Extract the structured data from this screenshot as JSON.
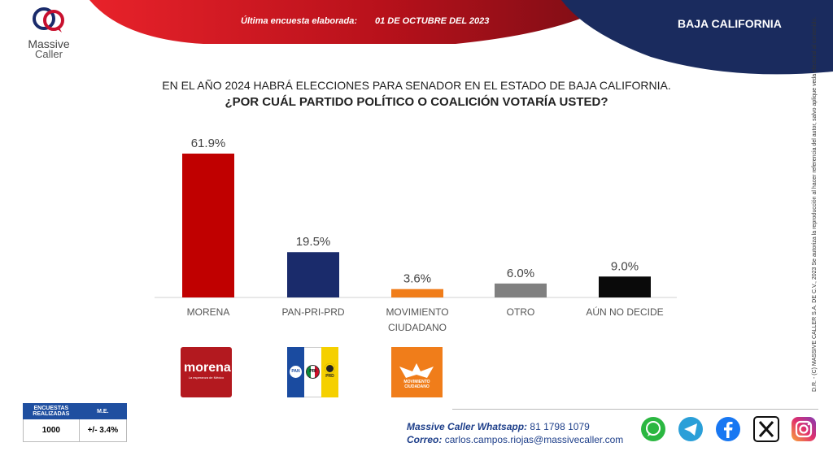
{
  "header": {
    "survey_label": "Última encuesta elaborada:",
    "survey_date": "01 DE OCTUBRE DEL 2023",
    "region": "BAJA CALIFORNIA",
    "colors": {
      "red": "#b8111b",
      "navy": "#1a2b5e"
    }
  },
  "logo": {
    "line1": "Massive",
    "line2": "Caller"
  },
  "question": {
    "line1": "EN EL AÑO 2024 HABRÁ ELECCIONES PARA SENADOR EN EL ESTADO DE BAJA CALIFORNIA.",
    "line2": "¿POR CUÁL PARTIDO POLÍTICO O COALICIÓN  VOTARÍA USTED?"
  },
  "chart_data": {
    "type": "bar",
    "title": "¿POR CUÁL PARTIDO POLÍTICO O COALICIÓN  VOTARÍA USTED?",
    "categories": [
      "MORENA",
      "PAN-PRI-PRD",
      "MOVIMIENTO CIUDADANO",
      "OTRO",
      "AÚN NO DECIDE"
    ],
    "category_lines": [
      [
        "MORENA"
      ],
      [
        "PAN-PRI-PRD"
      ],
      [
        "MOVIMIENTO",
        "CIUDADANO"
      ],
      [
        "OTRO"
      ],
      [
        "AÚN NO DECIDE"
      ]
    ],
    "values": [
      61.9,
      19.5,
      3.6,
      6.0,
      9.0
    ],
    "labels": [
      "61.9%",
      "19.5%",
      "3.6%",
      "6.0%",
      "9.0%"
    ],
    "colors": [
      "#c00000",
      "#1a2b6b",
      "#f07d1a",
      "#808080",
      "#0a0a0a"
    ],
    "ylim": [
      0,
      65
    ],
    "xlabel": "",
    "ylabel": "",
    "grid": false
  },
  "party_logos": {
    "morena": {
      "name": "morena",
      "tagline": "La esperanza de México"
    },
    "coalition": {
      "pan": "PAN",
      "pri": "PRI",
      "prd": "PRD"
    },
    "mc": {
      "line1": "MOVIMIENTO",
      "line2": "CIUDADANO"
    }
  },
  "side_note": "D.R. - (C) MASSIVE CALLER S.A. DE C.V., 2023   Se autoriza la reproducción al hacer referencia del autor, salvo aplique veda electoral al contenido.",
  "stats_table": {
    "col1_header_line1": "ENCUESTAS",
    "col1_header_line2": "REALIZADAS",
    "col2_header": "M.E.",
    "col1_value": "1000",
    "col2_value": "+/- 3.4%"
  },
  "contact": {
    "whatsapp_label": "Massive Caller Whatsapp:",
    "whatsapp_number": "81 1798 1079",
    "email_label": "Correo:",
    "email": "carlos.campos.riojas@massivecaller.com"
  },
  "social": [
    "whatsapp-icon",
    "telegram-icon",
    "facebook-icon",
    "x-icon",
    "instagram-icon"
  ]
}
